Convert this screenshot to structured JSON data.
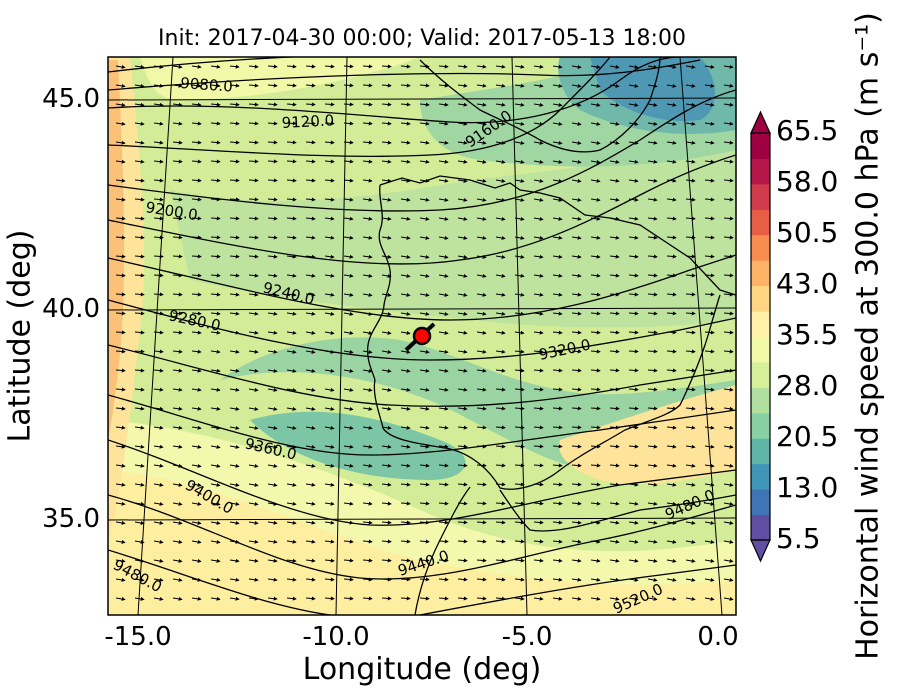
{
  "chart_data": {
    "type": "map",
    "title": "Init: 2017-04-30 00:00; Valid: 2017-05-13 18:00",
    "xlabel": "Longitude (deg)",
    "ylabel": "Latitude (deg)",
    "x_ticks": [
      "-15.0",
      "-10.0",
      "-5.0",
      "0.0"
    ],
    "y_ticks": [
      "45.0",
      "40.0",
      "35.0"
    ],
    "colorbar": {
      "label": "Horizontal wind speed at 300.0 hPa (m s⁻¹)",
      "ticks": [
        "65.5",
        "58.0",
        "50.5",
        "43.0",
        "35.5",
        "28.0",
        "20.5",
        "13.0",
        "5.5"
      ],
      "range": [
        5.5,
        65.5
      ],
      "extend": "both",
      "colors": [
        "#5e4fa2",
        "#3f74b6",
        "#3f96b7",
        "#5fb6a8",
        "#89cfa4",
        "#b1df9f",
        "#d6ef99",
        "#f1f9a7",
        "#fff1a8",
        "#fed683",
        "#fdb466",
        "#f88d51",
        "#e85d46",
        "#d03a4b",
        "#b5174a",
        "#9e0142"
      ]
    },
    "contour_labels": [
      "9080.0",
      "9120.0",
      "9160.0",
      "9200.0",
      "9240.0",
      "9280.0",
      "9320.0",
      "9360.0",
      "9400.0",
      "9440.0",
      "9480.0",
      "9480.0",
      "9520.0"
    ],
    "marker": {
      "lon": -7.7,
      "lat": 39.3,
      "color": "#ff0000"
    },
    "wind_vectors": "arrows pointing east, ~1 per grid cell",
    "map_features": "Iberian Peninsula coastline, southern France, northwest Africa"
  }
}
